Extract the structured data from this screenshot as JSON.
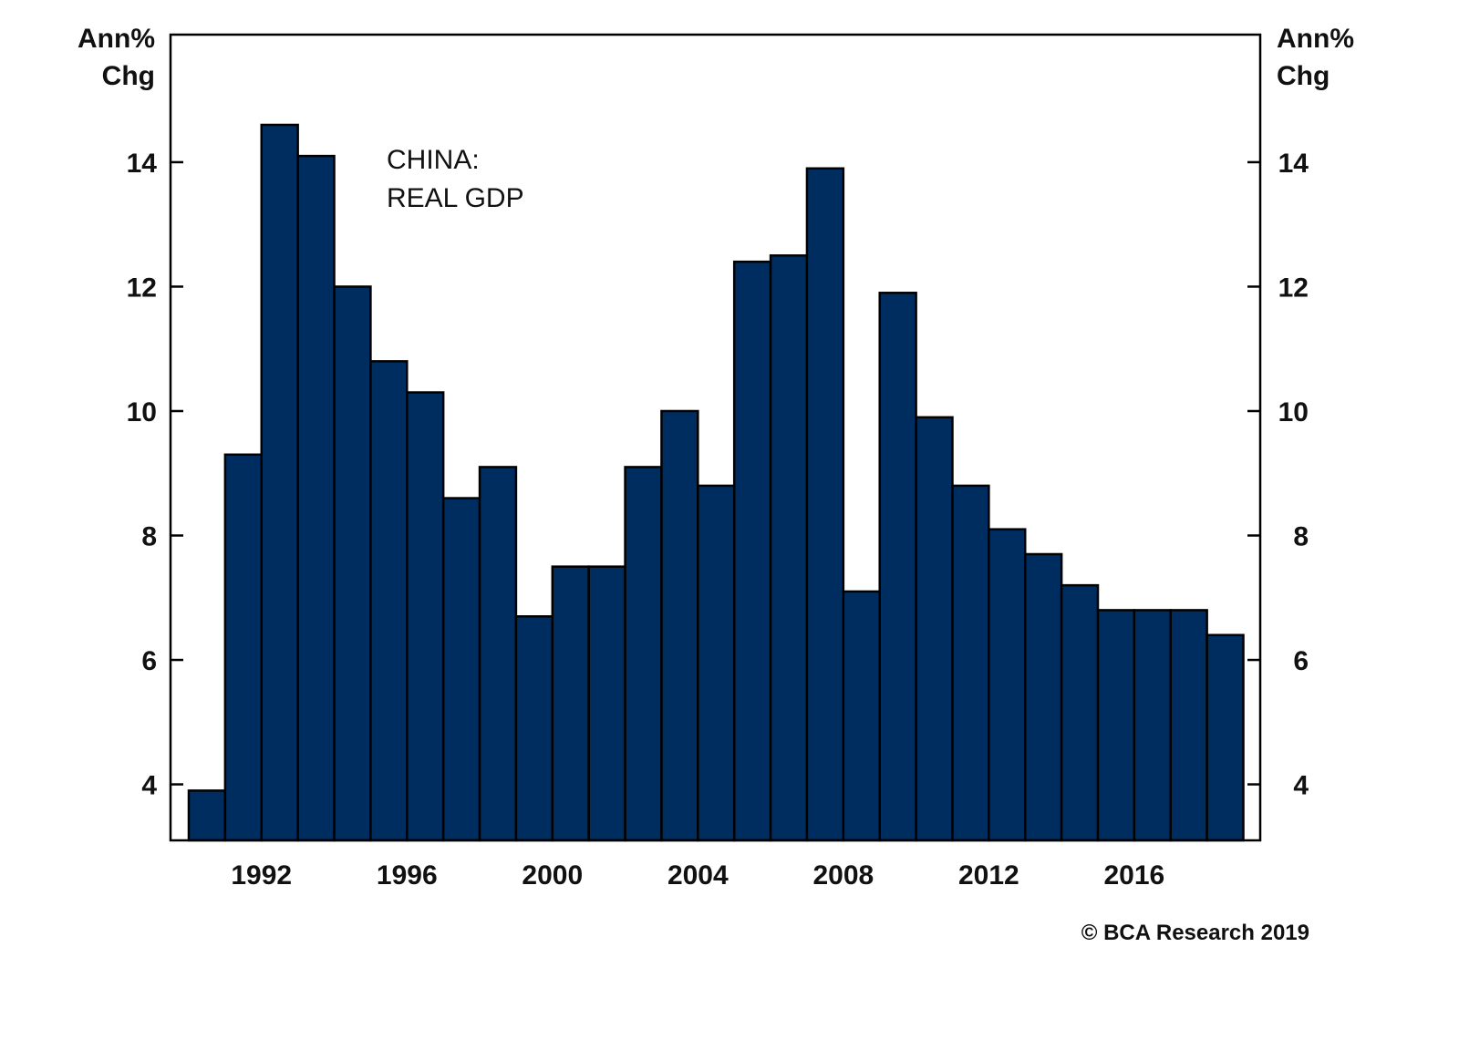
{
  "chart_data": {
    "type": "bar",
    "title": "CHINA: REAL GDP",
    "annotation_lines": [
      "CHINA:",
      "REAL GDP"
    ],
    "ylabel_left": [
      "Ann%",
      "Chg"
    ],
    "ylabel_right": [
      "Ann%",
      "Chg"
    ],
    "xlabel": "",
    "ylim": [
      3.1,
      16.05
    ],
    "yticks": [
      4,
      6,
      8,
      10,
      12,
      14
    ],
    "xtick_labels": [
      "1992",
      "1996",
      "2000",
      "2004",
      "2008",
      "2012",
      "2016"
    ],
    "grid": false,
    "legend": "none",
    "bar_color": "#002d5f",
    "bar_edge_color": "#000000",
    "categories": [
      "1990",
      "1991",
      "1992",
      "1993",
      "1994",
      "1995",
      "1996",
      "1997",
      "1998",
      "1999",
      "2000",
      "2001",
      "2002",
      "2003",
      "2004",
      "2005",
      "2006",
      "2007",
      "2008",
      "2009",
      "2010",
      "2011",
      "2012",
      "2013",
      "2014",
      "2015",
      "2016",
      "2017",
      "2018"
    ],
    "series": [
      {
        "name": "China Real GDP, annual % change",
        "values": [
          3.9,
          9.3,
          14.6,
          14.1,
          12.0,
          10.8,
          10.3,
          8.6,
          9.1,
          6.7,
          7.5,
          7.5,
          9.1,
          10.0,
          8.8,
          12.4,
          12.5,
          13.9,
          7.1,
          11.9,
          9.9,
          8.8,
          8.1,
          7.7,
          7.2,
          6.8,
          6.8,
          6.8,
          6.4
        ]
      }
    ],
    "source": "© BCA Research 2019"
  }
}
